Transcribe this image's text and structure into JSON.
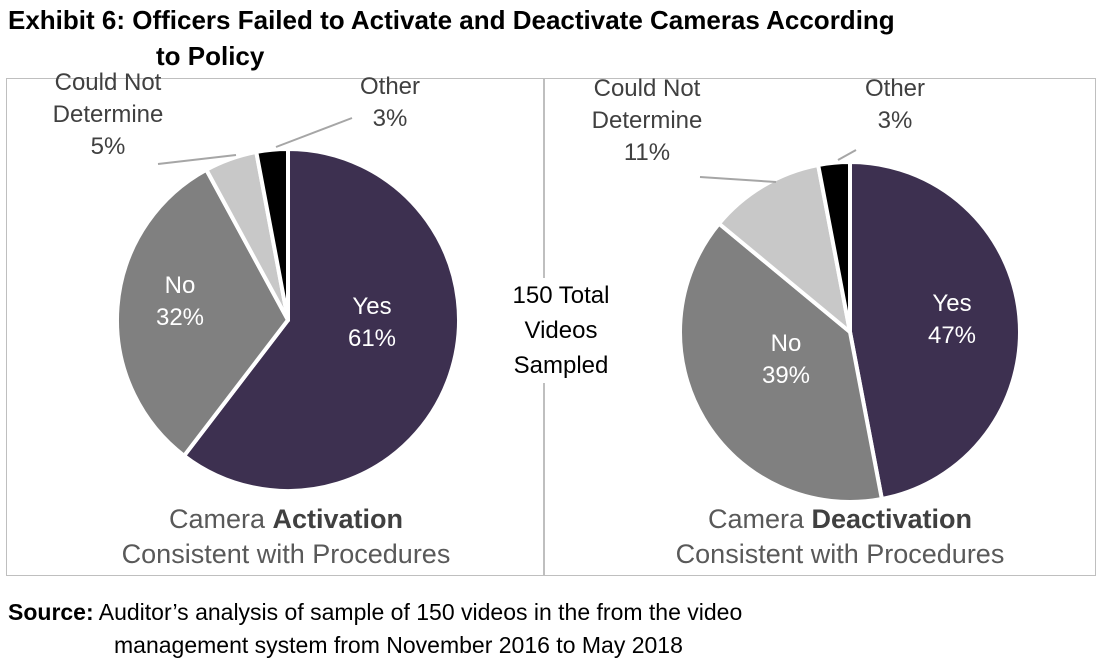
{
  "title": {
    "line1": "Exhibit 6: Officers Failed to Activate and Deactivate Cameras According",
    "line2": "to Policy"
  },
  "center_note": [
    "150 Total",
    "Videos",
    "Sampled"
  ],
  "captions": {
    "left": {
      "prefix": "Camera ",
      "bold": "Activation",
      "line2": "Consistent with Procedures"
    },
    "right": {
      "prefix": "Camera ",
      "bold": "Deactivation",
      "line2": "Consistent with Procedures"
    }
  },
  "source": {
    "label": "Source:",
    "line1": " Auditor’s analysis of sample of 150 videos in the from the video",
    "line2": "management system from November 2016 to May 2018"
  },
  "colors": {
    "yes": "#3d3050",
    "no": "#808080",
    "could_not_determine": "#c8c8c8",
    "other": "#000000"
  },
  "chart_data": [
    {
      "type": "pie",
      "categories": [
        "Yes",
        "No",
        "Could Not Determine",
        "Other"
      ],
      "values": [
        61,
        32,
        5,
        3
      ],
      "labels": [
        [
          "Yes",
          "61%"
        ],
        [
          "No",
          "32%"
        ],
        [
          "Could Not",
          "Determine",
          "5%"
        ],
        [
          "Other",
          "3%"
        ]
      ]
    },
    {
      "type": "pie",
      "categories": [
        "Yes",
        "No",
        "Could Not Determine",
        "Other"
      ],
      "values": [
        47,
        39,
        11,
        3
      ],
      "labels": [
        [
          "Yes",
          "47%"
        ],
        [
          "No",
          "39%"
        ],
        [
          "Could Not",
          "Determine",
          "11%"
        ],
        [
          "Other",
          "3%"
        ]
      ]
    }
  ]
}
